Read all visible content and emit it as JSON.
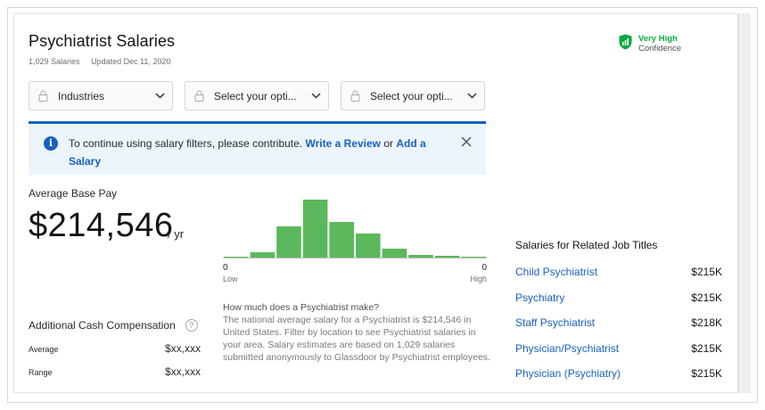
{
  "header": {
    "title": "Psychiatrist Salaries",
    "count": "1,029 Salaries",
    "updated": "Updated Dec 11, 2020"
  },
  "confidence": {
    "line1": "Very High",
    "line2": "Confidence",
    "color": "#0caa41",
    "icon": "shield-chart-icon"
  },
  "filters": [
    {
      "label": "Industries",
      "icon": "lock-icon"
    },
    {
      "label": "Select your opti...",
      "icon": "lock-icon"
    },
    {
      "label": "Select your opti...",
      "icon": "lock-icon"
    }
  ],
  "notice": {
    "text": "To continue using salary filters, please contribute.",
    "link1": "Write a Review",
    "mid": "or",
    "link2": "Add a Salary",
    "accent": "#1861bf"
  },
  "pay": {
    "label": "Average Base Pay",
    "value": "$214,546",
    "unit": "/ yr"
  },
  "distribution": {
    "axis_min": "0",
    "axis_max": "0",
    "low_label": "Low",
    "high_label": "High",
    "bars": [
      2,
      7,
      36,
      66,
      41,
      28,
      11,
      4,
      3,
      2
    ],
    "color": "#5cb85c"
  },
  "description": {
    "question": "How much does a Psychiatrist make?",
    "body": "The national average salary for a Psychiatrist is $214,546 in United States. Filter by location to see Psychiatrist salaries in your area. Salary estimates are based on 1,029 salaries submitted anonymously to Glassdoor by Psychiatrist employees."
  },
  "additional": {
    "title": "Additional Cash Compensation",
    "help": "?",
    "rows": [
      {
        "label": "Average",
        "value": "$xx,xxx"
      },
      {
        "label": "Range",
        "value": "$xx,xxx"
      }
    ]
  },
  "related": {
    "title": "Salaries for Related Job Titles",
    "items": [
      {
        "name": "Child Psychiatrist",
        "salary": "$215K"
      },
      {
        "name": "Psychiatry",
        "salary": "$215K"
      },
      {
        "name": "Staff Psychiatrist",
        "salary": "$218K"
      },
      {
        "name": "Physician/Psychiatrist",
        "salary": "$215K"
      },
      {
        "name": "Physician (Psychiatry)",
        "salary": "$215K"
      }
    ]
  }
}
